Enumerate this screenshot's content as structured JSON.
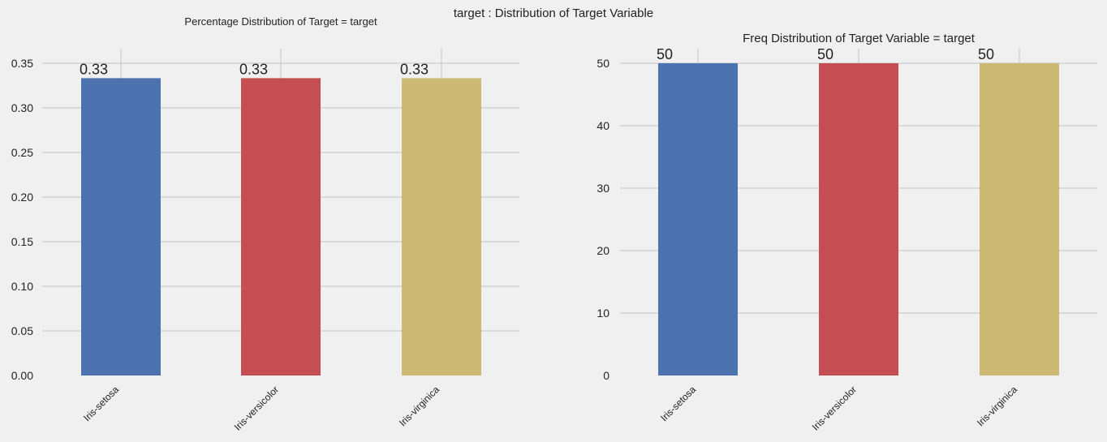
{
  "suptitle": "target : Distribution of Target Variable",
  "colors": [
    "#4c72b0",
    "#c44e52",
    "#ccb974"
  ],
  "chart_data": [
    {
      "type": "bar",
      "title": "Percentage Distribution of Target = target",
      "categories": [
        "Iris-setosa",
        "Iris-versicolor",
        "Iris-virginica"
      ],
      "values": [
        0.3333,
        0.3333,
        0.3333
      ],
      "data_labels": [
        "0.33",
        "0.33",
        "0.33"
      ],
      "xlabel": "",
      "ylabel": "",
      "ylim": [
        0,
        0.35
      ],
      "yticks": [
        0.0,
        0.05,
        0.1,
        0.15,
        0.2,
        0.25,
        0.3,
        0.35
      ],
      "ytick_labels": [
        "0.00",
        "0.05",
        "0.10",
        "0.15",
        "0.20",
        "0.25",
        "0.30",
        "0.35"
      ],
      "grid": true
    },
    {
      "type": "bar",
      "title": "Freq Distribution of Target Variable = target",
      "categories": [
        "Iris-setosa",
        "Iris-versicolor",
        "Iris-virginica"
      ],
      "values": [
        50,
        50,
        50
      ],
      "data_labels": [
        "50",
        "50",
        "50"
      ],
      "xlabel": "",
      "ylabel": "",
      "ylim": [
        0,
        50
      ],
      "yticks": [
        0,
        10,
        20,
        30,
        40,
        50
      ],
      "ytick_labels": [
        "0",
        "10",
        "20",
        "30",
        "40",
        "50"
      ],
      "grid": true
    }
  ]
}
